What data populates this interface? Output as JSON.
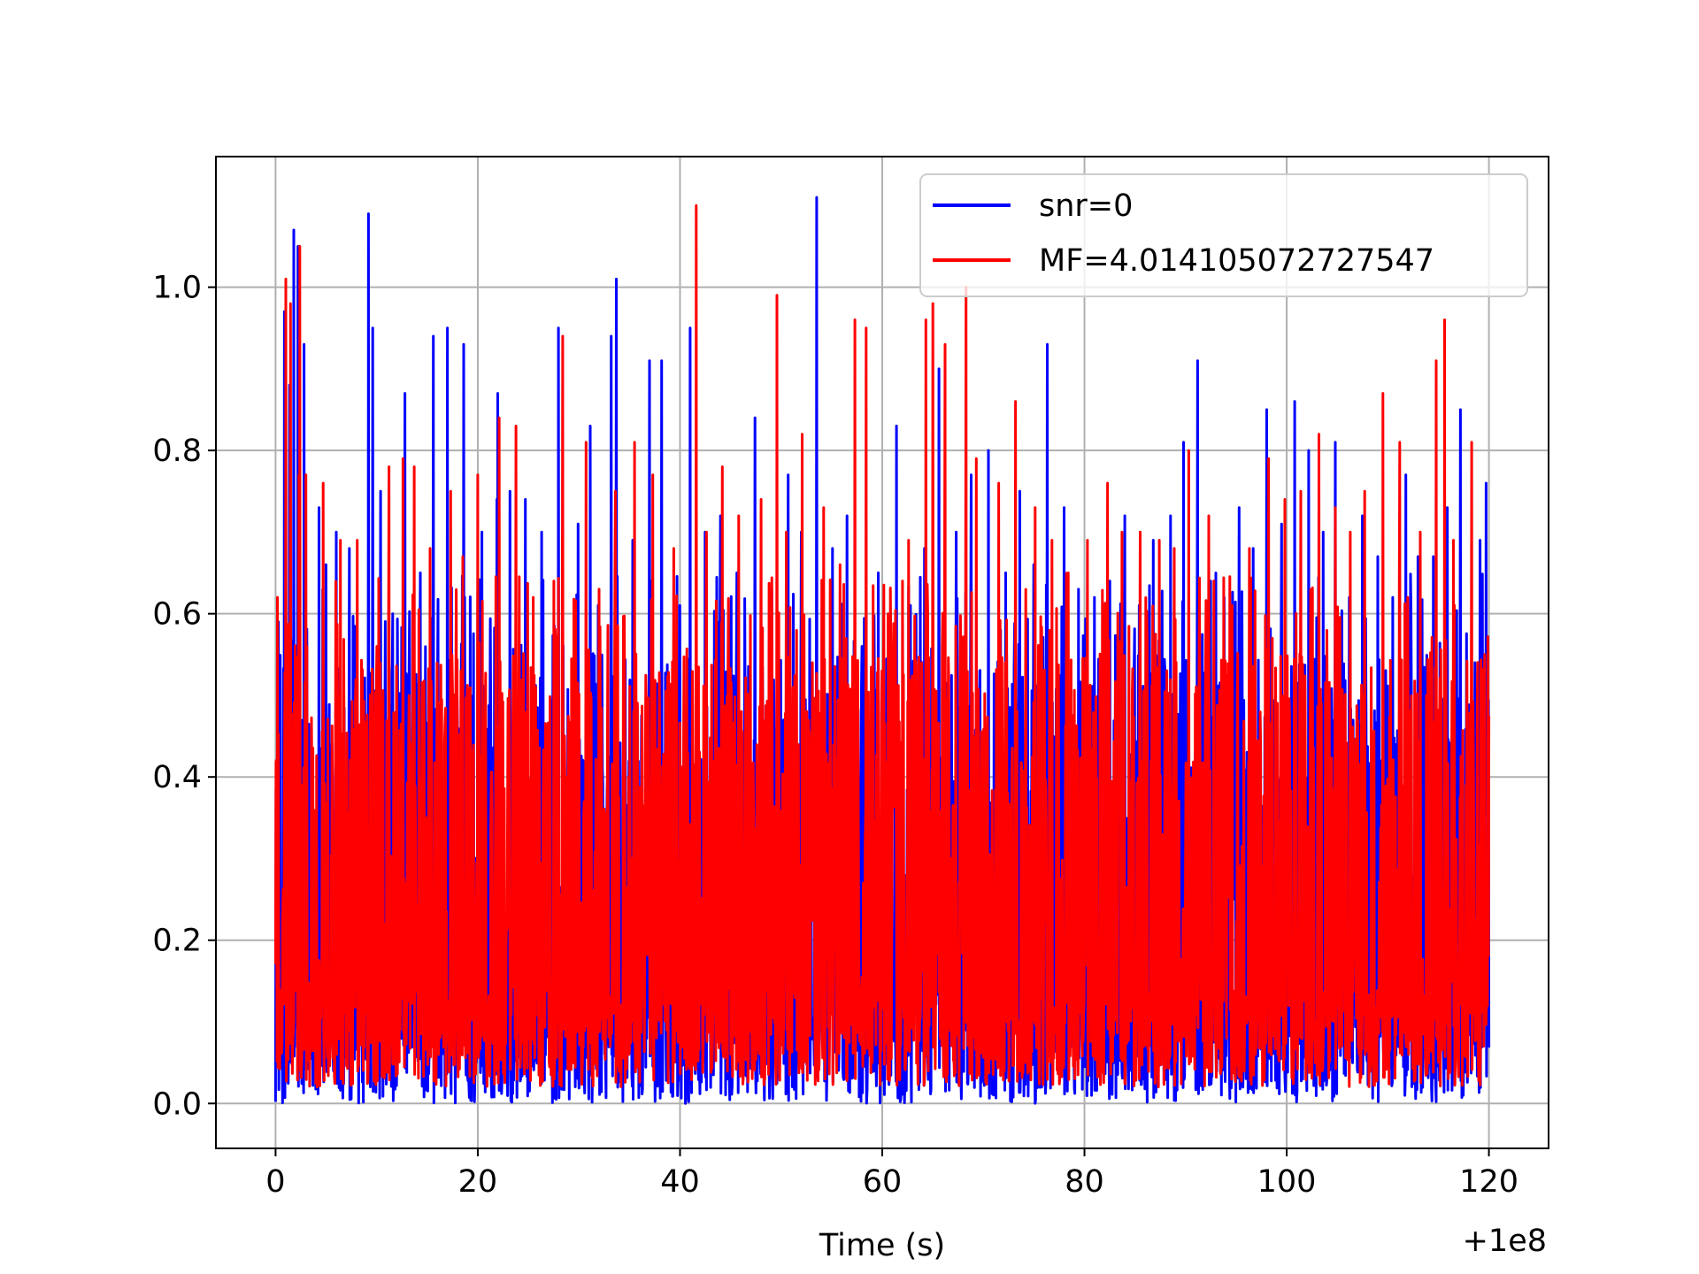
{
  "chart_data": {
    "type": "line",
    "title": "",
    "xlabel": "Time (s)",
    "ylabel": "",
    "x_offset_label": "+1e8",
    "xlim": [
      -5.9,
      125.9
    ],
    "ylim": [
      -0.055,
      1.16
    ],
    "xticks": [
      {
        "value": 0,
        "label": "0"
      },
      {
        "value": 20,
        "label": "20"
      },
      {
        "value": 40,
        "label": "40"
      },
      {
        "value": 60,
        "label": "60"
      },
      {
        "value": 80,
        "label": "80"
      },
      {
        "value": 100,
        "label": "100"
      },
      {
        "value": 120,
        "label": "120"
      }
    ],
    "yticks": [
      {
        "value": 0.0,
        "label": "0.0"
      },
      {
        "value": 0.2,
        "label": "0.2"
      },
      {
        "value": 0.4,
        "label": "0.4"
      },
      {
        "value": 0.6,
        "label": "0.6"
      },
      {
        "value": 0.8,
        "label": "0.8"
      },
      {
        "value": 1.0,
        "label": "1.0"
      }
    ],
    "grid": true,
    "legend_position": "top-right",
    "x_range": [
      0,
      120
    ],
    "series": [
      {
        "name": "snr=0",
        "color": "#0000ff",
        "baseline_min": 0.0,
        "peaks": [
          [
            0.3,
            0.59
          ],
          [
            0.9,
            0.97
          ],
          [
            1.4,
            0.88
          ],
          [
            1.8,
            1.07
          ],
          [
            2.3,
            0.76
          ],
          [
            2.2,
            1.05
          ],
          [
            2.8,
            0.93
          ],
          [
            4.3,
            0.73
          ],
          [
            5.0,
            0.66
          ],
          [
            6.0,
            0.7
          ],
          [
            7.3,
            0.68
          ],
          [
            9.2,
            1.09
          ],
          [
            9.6,
            0.95
          ],
          [
            10.4,
            0.75
          ],
          [
            11.6,
            0.6
          ],
          [
            12.8,
            0.87
          ],
          [
            14.3,
            0.65
          ],
          [
            15.6,
            0.94
          ],
          [
            17.0,
            0.95
          ],
          [
            18.6,
            0.93
          ],
          [
            20.4,
            0.7
          ],
          [
            21.9,
            0.74
          ],
          [
            22.0,
            0.87
          ],
          [
            23.2,
            0.75
          ],
          [
            24.7,
            0.74
          ],
          [
            26.3,
            0.7
          ],
          [
            28.0,
            0.95
          ],
          [
            29.9,
            0.71
          ],
          [
            31.1,
            0.83
          ],
          [
            31.9,
            0.61
          ],
          [
            33.2,
            0.94
          ],
          [
            33.7,
            1.01
          ],
          [
            35.3,
            0.69
          ],
          [
            37.0,
            0.91
          ],
          [
            38.2,
            0.91
          ],
          [
            40.0,
            0.61
          ],
          [
            41.0,
            0.95
          ],
          [
            42.5,
            0.7
          ],
          [
            44.0,
            0.72
          ],
          [
            45.6,
            0.65
          ],
          [
            47.4,
            0.84
          ],
          [
            49.1,
            0.63
          ],
          [
            50.7,
            0.77
          ],
          [
            52.0,
            0.7
          ],
          [
            53.5,
            1.11
          ],
          [
            55.1,
            0.68
          ],
          [
            56.5,
            0.72
          ],
          [
            58.0,
            0.56
          ],
          [
            59.6,
            0.65
          ],
          [
            61.4,
            0.83
          ],
          [
            62.8,
            0.61
          ],
          [
            64.2,
            0.68
          ],
          [
            65.6,
            0.9
          ],
          [
            67.3,
            0.7
          ],
          [
            68.8,
            0.77
          ],
          [
            70.5,
            0.8
          ],
          [
            72.2,
            0.65
          ],
          [
            73.6,
            0.75
          ],
          [
            75.0,
            0.66
          ],
          [
            76.3,
            0.93
          ],
          [
            78.0,
            0.73
          ],
          [
            79.4,
            0.63
          ],
          [
            81.0,
            0.62
          ],
          [
            82.5,
            0.64
          ],
          [
            84.0,
            0.72
          ],
          [
            85.4,
            0.61
          ],
          [
            86.8,
            0.69
          ],
          [
            88.5,
            0.72
          ],
          [
            89.8,
            0.81
          ],
          [
            91.2,
            0.91
          ],
          [
            92.5,
            0.64
          ],
          [
            93.8,
            0.62
          ],
          [
            95.3,
            0.73
          ],
          [
            96.7,
            0.68
          ],
          [
            98.0,
            0.85
          ],
          [
            99.5,
            0.71
          ],
          [
            100.8,
            0.86
          ],
          [
            102.2,
            0.8
          ],
          [
            103.6,
            0.7
          ],
          [
            104.8,
            0.81
          ],
          [
            106.2,
            0.62
          ],
          [
            107.5,
            0.72
          ],
          [
            109.0,
            0.67
          ],
          [
            110.5,
            0.62
          ],
          [
            111.8,
            0.77
          ],
          [
            113.0,
            0.67
          ],
          [
            114.5,
            0.67
          ],
          [
            115.9,
            0.73
          ],
          [
            117.2,
            0.85
          ],
          [
            118.6,
            0.54
          ],
          [
            119.1,
            0.69
          ],
          [
            119.7,
            0.76
          ]
        ]
      },
      {
        "name": "MF=4.014105072727547",
        "color": "#ff0000",
        "baseline_min": 0.02,
        "peaks": [
          [
            0.2,
            0.62
          ],
          [
            1.0,
            1.01
          ],
          [
            1.5,
            0.98
          ],
          [
            2.3,
            0.77
          ],
          [
            2.4,
            1.05
          ],
          [
            3.0,
            0.77
          ],
          [
            4.7,
            0.76
          ],
          [
            6.4,
            0.69
          ],
          [
            8.1,
            0.69
          ],
          [
            10.0,
            0.56
          ],
          [
            11.2,
            0.78
          ],
          [
            12.6,
            0.79
          ],
          [
            13.7,
            0.78
          ],
          [
            15.3,
            0.68
          ],
          [
            17.3,
            0.75
          ],
          [
            18.5,
            0.67
          ],
          [
            20.0,
            0.77
          ],
          [
            22.1,
            0.84
          ],
          [
            23.8,
            0.83
          ],
          [
            25.5,
            0.62
          ],
          [
            27.5,
            0.64
          ],
          [
            28.4,
            0.94
          ],
          [
            30.7,
            0.81
          ],
          [
            32.0,
            0.63
          ],
          [
            33.6,
            0.75
          ],
          [
            35.5,
            0.81
          ],
          [
            37.3,
            0.77
          ],
          [
            39.4,
            0.68
          ],
          [
            41.6,
            1.1
          ],
          [
            42.6,
            0.7
          ],
          [
            44.2,
            0.78
          ],
          [
            45.8,
            0.72
          ],
          [
            48.0,
            0.74
          ],
          [
            49.6,
            0.99
          ],
          [
            50.5,
            0.7
          ],
          [
            52.1,
            0.82
          ],
          [
            54.2,
            0.73
          ],
          [
            55.8,
            0.66
          ],
          [
            57.3,
            0.96
          ],
          [
            58.4,
            0.95
          ],
          [
            60.6,
            0.6
          ],
          [
            62.6,
            0.69
          ],
          [
            64.3,
            0.96
          ],
          [
            65.0,
            0.98
          ],
          [
            66.2,
            0.93
          ],
          [
            68.3,
            1.0
          ],
          [
            69.3,
            0.79
          ],
          [
            71.5,
            0.76
          ],
          [
            73.2,
            0.86
          ],
          [
            75.1,
            0.73
          ],
          [
            76.8,
            0.69
          ],
          [
            78.4,
            0.65
          ],
          [
            80.3,
            0.69
          ],
          [
            82.3,
            0.76
          ],
          [
            83.7,
            0.7
          ],
          [
            85.5,
            0.7
          ],
          [
            87.4,
            0.69
          ],
          [
            88.9,
            0.68
          ],
          [
            90.3,
            0.8
          ],
          [
            92.3,
            0.72
          ],
          [
            94.6,
            0.61
          ],
          [
            96.3,
            0.68
          ],
          [
            98.2,
            0.79
          ],
          [
            99.8,
            0.74
          ],
          [
            101.4,
            0.75
          ],
          [
            103.2,
            0.82
          ],
          [
            104.8,
            0.73
          ],
          [
            106.3,
            0.7
          ],
          [
            107.7,
            0.75
          ],
          [
            109.5,
            0.87
          ],
          [
            111.2,
            0.81
          ],
          [
            113.2,
            0.7
          ],
          [
            114.8,
            0.91
          ],
          [
            115.6,
            0.96
          ],
          [
            116.5,
            0.69
          ],
          [
            118.3,
            0.81
          ],
          [
            119.6,
            0.55
          ]
        ]
      }
    ]
  }
}
